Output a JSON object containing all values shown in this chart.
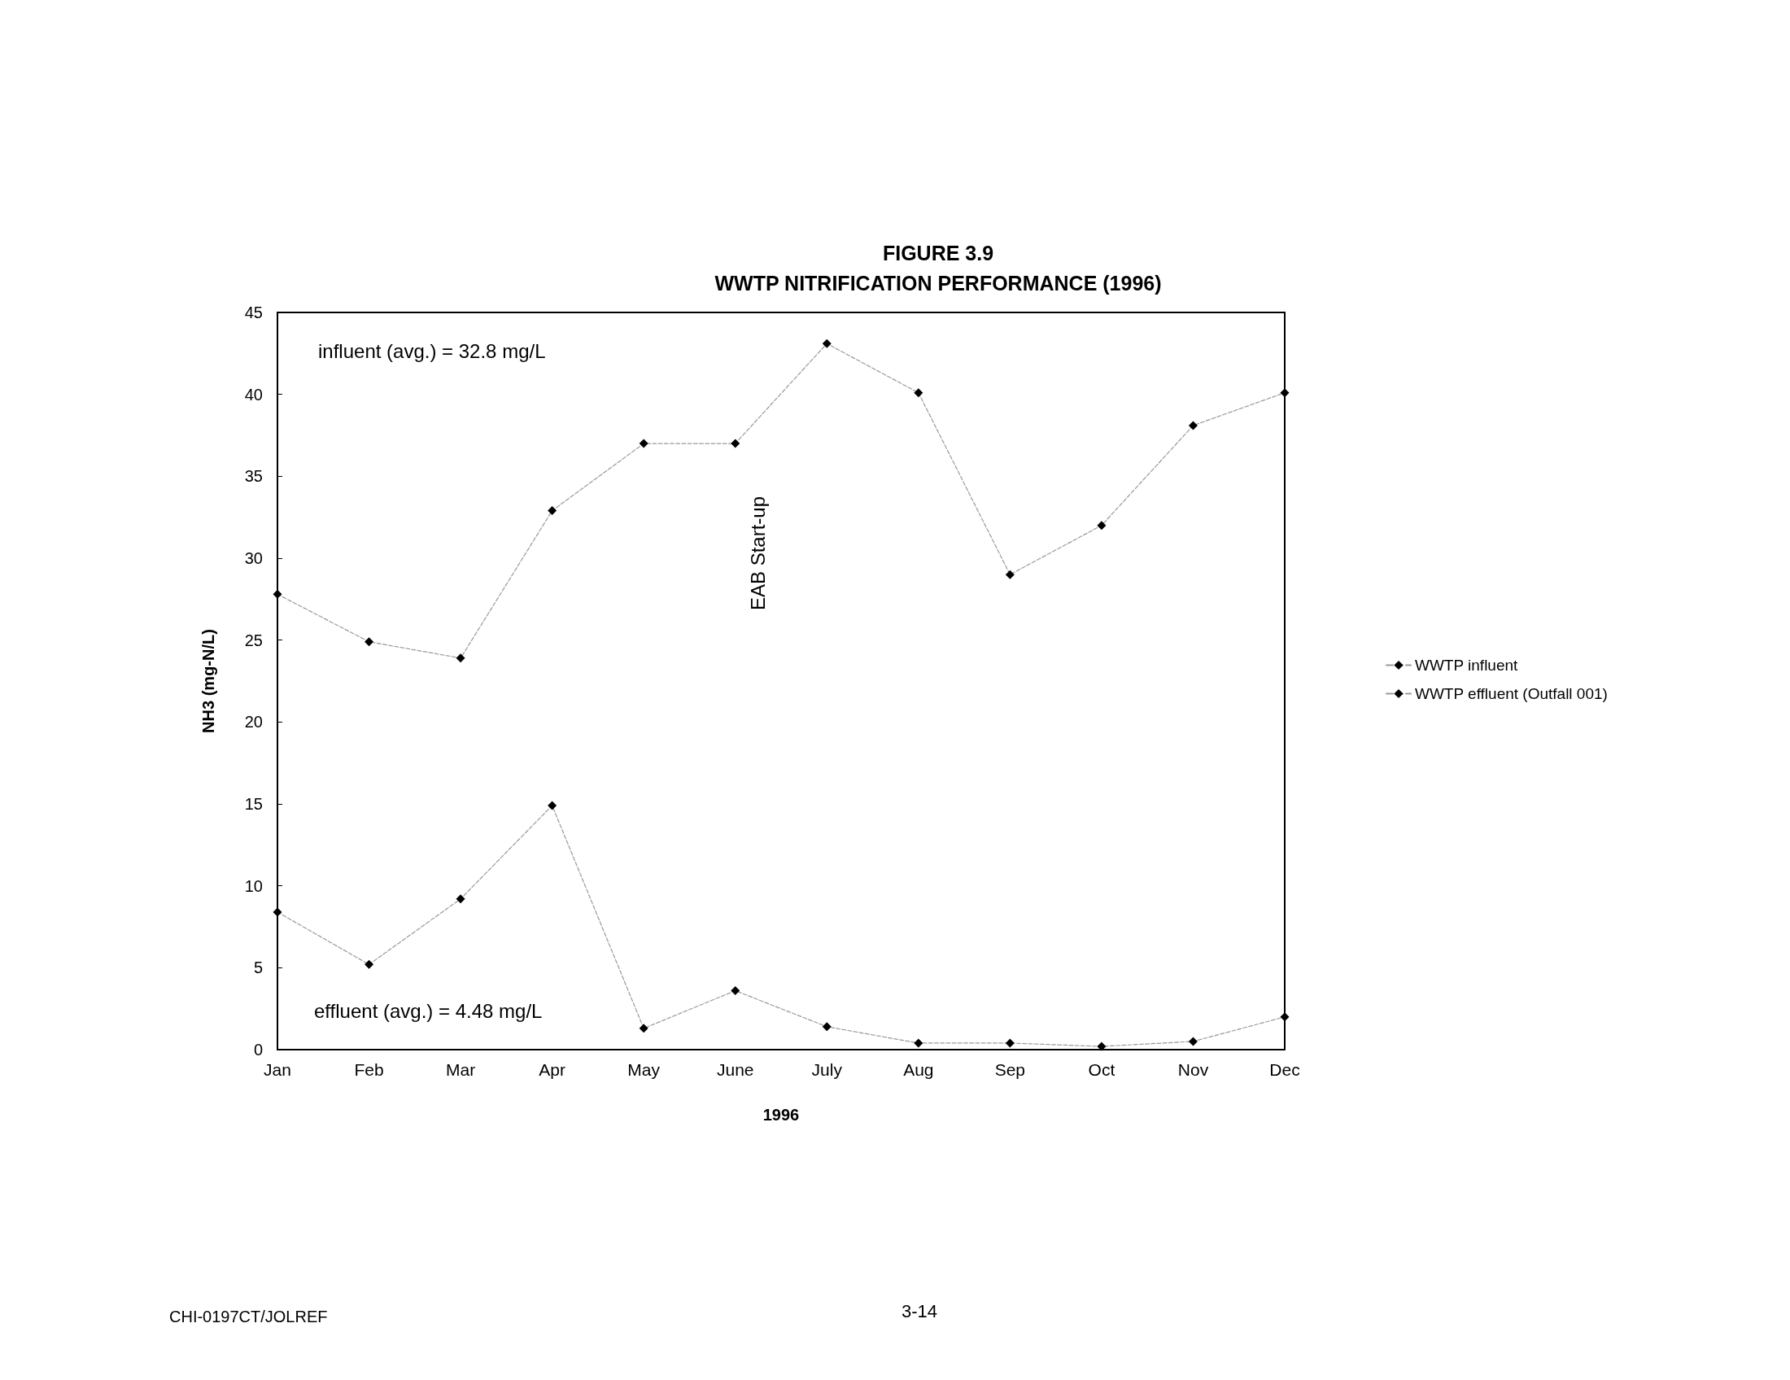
{
  "chart_data": {
    "type": "line",
    "title": "FIGURE 3.9",
    "subtitle": "WWTP NITRIFICATION PERFORMANCE (1996)",
    "xlabel": "1996",
    "ylabel": "NH3 (mg-N/L)",
    "categories": [
      "Jan",
      "Feb",
      "Mar",
      "Apr",
      "May",
      "June",
      "July",
      "Aug",
      "Sep",
      "Oct",
      "Nov",
      "Dec"
    ],
    "series": [
      {
        "name": "WWTP influent",
        "color": "#000000",
        "values": [
          27.8,
          24.9,
          23.9,
          32.9,
          37.0,
          37.0,
          43.1,
          40.1,
          29.0,
          32.0,
          38.1,
          40.1
        ]
      },
      {
        "name": "WWTP effluent (Outfall 001)",
        "color": "#000000",
        "values": [
          8.4,
          5.2,
          9.2,
          14.9,
          1.3,
          3.6,
          1.4,
          0.4,
          0.4,
          0.2,
          0.5,
          2.0
        ]
      }
    ],
    "ylim": [
      0,
      45
    ],
    "yticks": [
      0,
      5,
      10,
      15,
      20,
      25,
      30,
      35,
      40,
      45
    ],
    "grid": false,
    "legend": "right",
    "marker": "diamond",
    "line_style": "dashed",
    "annotations": [
      "influent (avg.) = 32.8 mg/L",
      "effluent (avg.) = 4.48 mg/L",
      "EAB Start-up",
      "CHI-0197CT/JOLREF",
      "3-14"
    ]
  }
}
